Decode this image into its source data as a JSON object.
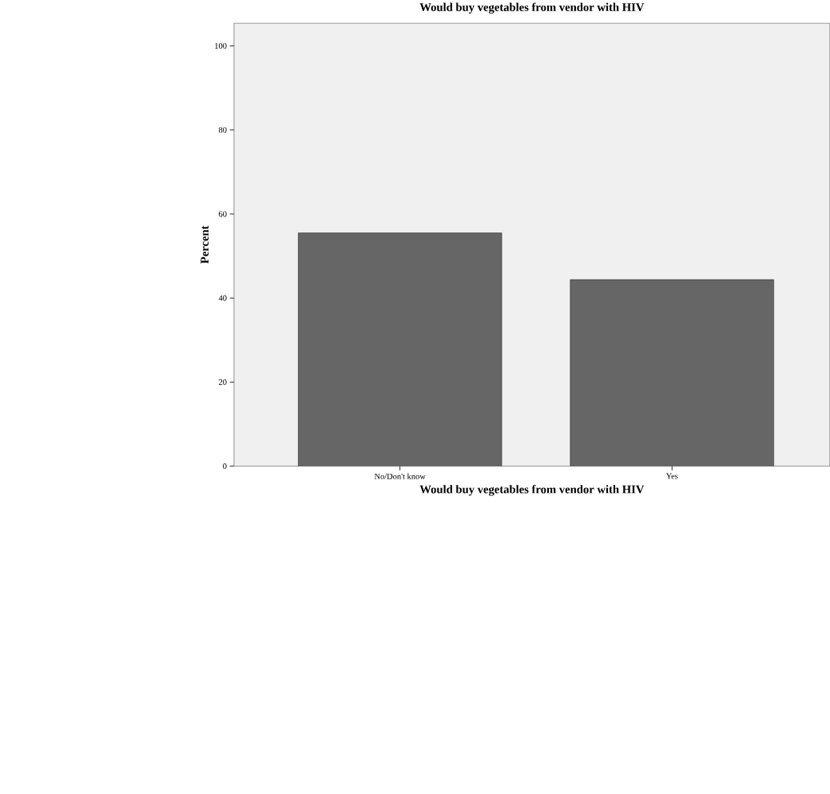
{
  "chart_data": {
    "type": "bar",
    "title": "Would buy vegetables from vendor with HIV",
    "xlabel": "Would buy vegetables from vendor with HIV",
    "ylabel": "Percent",
    "categories": [
      "No/Don't know",
      "Yes"
    ],
    "values": [
      55.5,
      44.4
    ],
    "color": "#666666",
    "ylim": [
      0,
      105.4
    ],
    "yticks": [
      0,
      20,
      40,
      60,
      80,
      100
    ],
    "grid": false
  }
}
